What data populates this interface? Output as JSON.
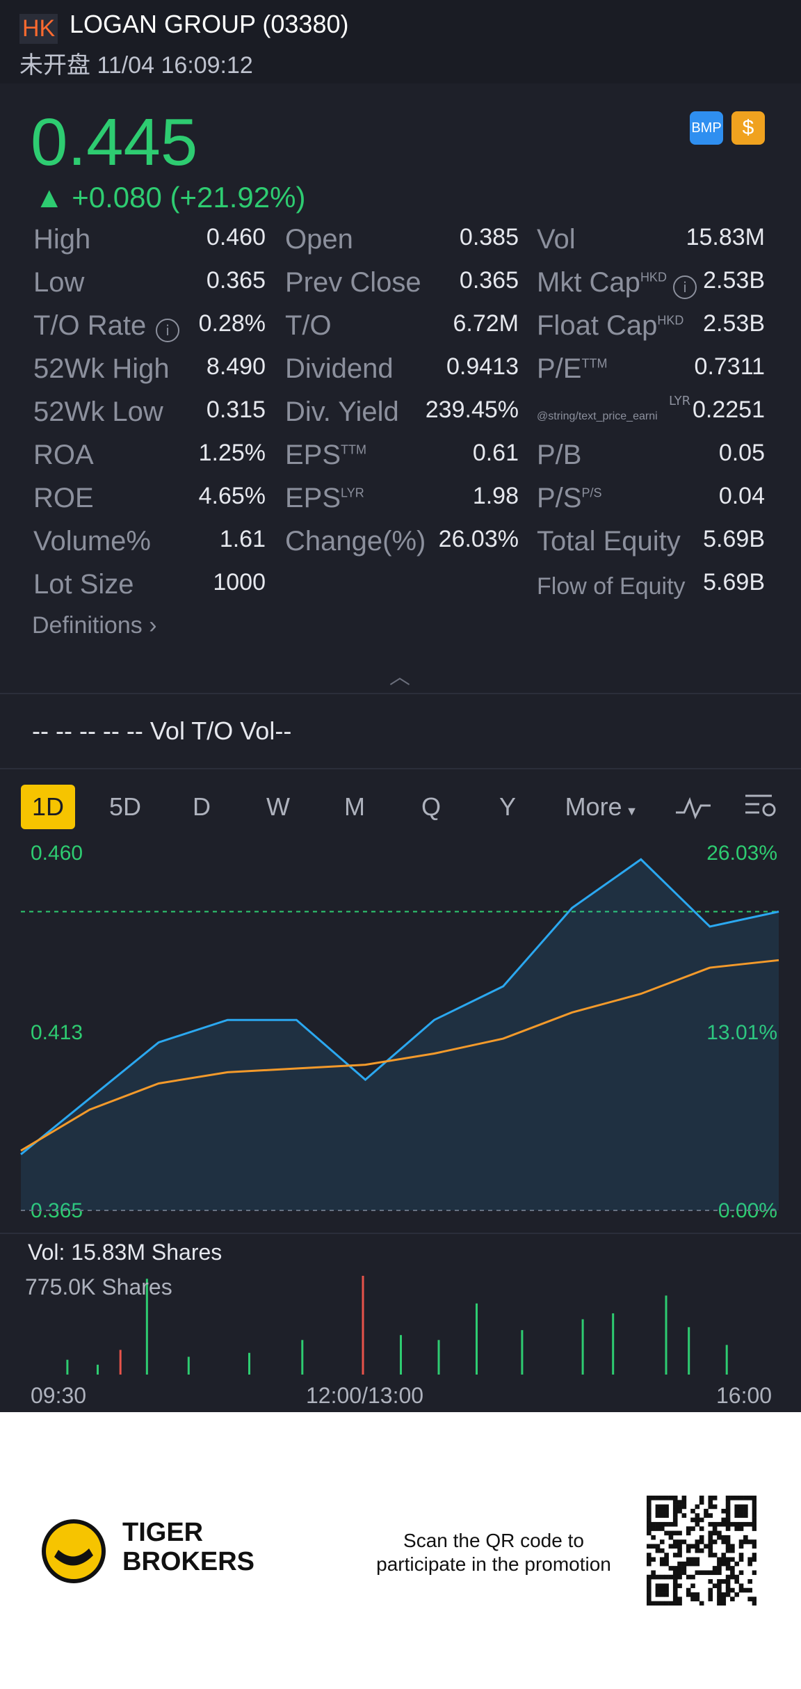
{
  "header": {
    "market_badge": "HK",
    "title": "LOGAN GROUP (03380)",
    "status": "未开盘 11/04 16:09:12"
  },
  "quote": {
    "price": "0.445",
    "change": "▲ +0.080 (+21.92%)",
    "badge_bmp": "BMP",
    "badge_dollar": "$"
  },
  "stats": {
    "high_label": "High",
    "high": "0.460",
    "open_label": "Open",
    "open": "0.385",
    "vol_label": "Vol",
    "vol": "15.83M",
    "low_label": "Low",
    "low": "0.365",
    "prev_close_label": "Prev Close",
    "prev_close": "0.365",
    "mkt_cap_label": "Mkt Cap",
    "mkt_cap_sup": "HKD",
    "mkt_cap": "2.53B",
    "to_rate_label": "T/O Rate",
    "to_rate": "0.28%",
    "to_label": "T/O",
    "to": "6.72M",
    "float_cap_label": "Float Cap",
    "float_cap_sup": "HKD",
    "float_cap": "2.53B",
    "wk52_high_label": "52Wk High",
    "wk52_high": "8.490",
    "dividend_label": "Dividend",
    "dividend": "0.9413",
    "pe_label": "P/E",
    "pe_sup": "TTM",
    "pe": "0.7311",
    "wk52_low_label": "52Wk Low",
    "wk52_low": "0.315",
    "div_yield_label": "Div. Yield",
    "div_yield": "239.45%",
    "pe_lyr_label": "@string/text_price_earni",
    "pe_lyr_sup": "LYR",
    "pe_lyr": "0.2251",
    "roa_label": "ROA",
    "roa": "1.25%",
    "eps_ttm_label": "EPS",
    "eps_ttm_sup": "TTM",
    "eps_ttm": "0.61",
    "pb_label": "P/B",
    "pb": "0.05",
    "roe_label": "ROE",
    "roe": "4.65%",
    "eps_lyr_label": "EPS",
    "eps_lyr_sup": "LYR",
    "eps_lyr": "1.98",
    "ps_label": "P/S",
    "ps_sup": "P/S",
    "ps": "0.04",
    "volume_pct_label": "Volume%",
    "volume_pct": "1.61",
    "change_pct_label": "Change(%)",
    "change_pct": "26.03%",
    "total_equity_label": "Total Equity",
    "total_equity": "5.69B",
    "lot_size_label": "Lot Size",
    "lot_size": "1000",
    "flow_equity_label": "Flow of Equity",
    "flow_equity": "5.69B"
  },
  "definitions": "Definitions",
  "vol_summary": "-- -- -- -- --  Vol   T/O Vol--",
  "tabs": [
    "1D",
    "5D",
    "D",
    "W",
    "M",
    "Q",
    "Y",
    "More"
  ],
  "chart_axis": {
    "y_top": "0.460",
    "y_mid": "0.413",
    "y_bottom": "0.365",
    "pct_top": "26.03%",
    "pct_mid": "13.01%",
    "pct_bottom": "0.00%"
  },
  "volume": {
    "label": "Vol:  15.83M Shares",
    "max": "775.0K Shares"
  },
  "time_axis": [
    "09:30",
    "12:00/13:00",
    "16:00"
  ],
  "footer": {
    "brand_line1": "TIGER",
    "brand_line2": "BROKERS",
    "text": "Scan the QR code to participate in the promotion"
  },
  "colors": {
    "bg": "#1e2029",
    "green": "#2ecc71",
    "accent": "#f6c400",
    "price_line": "#2ba8f0",
    "avg_line": "#f39a2b"
  },
  "chart_data": {
    "type": "line",
    "x": [
      "09:30",
      "10:00",
      "10:30",
      "11:00",
      "11:30",
      "12:00/13:00",
      "13:30",
      "14:00",
      "14:30",
      "15:00",
      "15:30",
      "16:00"
    ],
    "series": [
      {
        "values": [
          0.38,
          0.395,
          0.41,
          0.416,
          0.416,
          0.4,
          0.416,
          0.425,
          0.446,
          0.459,
          0.441,
          0.445
        ]
      },
      {
        "values": [
          0.381,
          0.392,
          0.399,
          0.402,
          0.403,
          0.404,
          0.407,
          0.411,
          0.418,
          0.423,
          0.43,
          0.432
        ]
      }
    ],
    "ylim": [
      0.365,
      0.46
    ],
    "reference_line": 0.445,
    "volume_bars": [
      {
        "x": 0.06,
        "v": 0.15
      },
      {
        "x": 0.1,
        "v": 0.1
      },
      {
        "x": 0.13,
        "v": 0.25,
        "c": "red"
      },
      {
        "x": 0.165,
        "v": 0.97
      },
      {
        "x": 0.22,
        "v": 0.18
      },
      {
        "x": 0.3,
        "v": 0.22
      },
      {
        "x": 0.37,
        "v": 0.35
      },
      {
        "x": 0.45,
        "v": 1.0,
        "c": "red"
      },
      {
        "x": 0.5,
        "v": 0.4
      },
      {
        "x": 0.55,
        "v": 0.35
      },
      {
        "x": 0.6,
        "v": 0.72
      },
      {
        "x": 0.66,
        "v": 0.45
      },
      {
        "x": 0.74,
        "v": 0.56
      },
      {
        "x": 0.78,
        "v": 0.62
      },
      {
        "x": 0.85,
        "v": 0.8
      },
      {
        "x": 0.88,
        "v": 0.48
      },
      {
        "x": 0.93,
        "v": 0.3
      }
    ]
  }
}
